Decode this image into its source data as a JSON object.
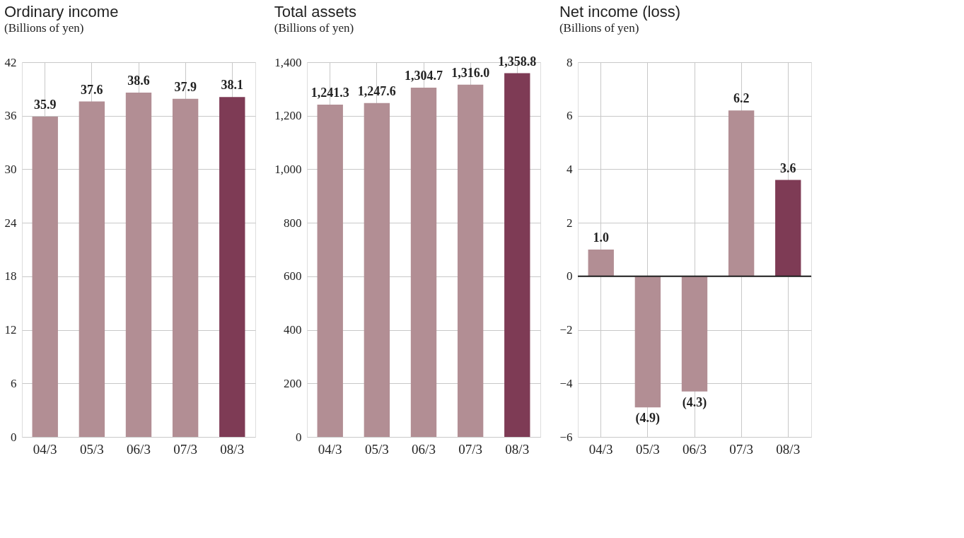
{
  "chart_data": [
    {
      "type": "bar",
      "title": "Ordinary income",
      "subtitle": "(Billions of yen)",
      "categories": [
        "04/3",
        "05/3",
        "06/3",
        "07/3",
        "08/3"
      ],
      "values": [
        35.9,
        37.6,
        38.6,
        37.9,
        38.1
      ],
      "colors": [
        "#b28e94",
        "#b28e94",
        "#b28e94",
        "#b28e94",
        "#7e3b55"
      ],
      "value_labels": [
        "35.9",
        "37.6",
        "38.6",
        "37.9",
        "38.1"
      ],
      "ylim": [
        0,
        42
      ],
      "yticks": [
        0,
        6,
        12,
        18,
        24,
        30,
        36,
        42
      ],
      "grid": true
    },
    {
      "type": "bar",
      "title": "Total assets",
      "subtitle": "(Billions of yen)",
      "categories": [
        "04/3",
        "05/3",
        "06/3",
        "07/3",
        "08/3"
      ],
      "values": [
        1241.3,
        1247.6,
        1304.7,
        1316.0,
        1358.8
      ],
      "colors": [
        "#b28e94",
        "#b28e94",
        "#b28e94",
        "#b28e94",
        "#7e3b55"
      ],
      "value_labels": [
        "1,241.3",
        "1,247.6",
        "1,304.7",
        "1,316.0",
        "1,358.8"
      ],
      "ylim": [
        0,
        1400
      ],
      "yticks": [
        {
          "value": 0,
          "label": "0"
        },
        {
          "value": 200,
          "label": "200"
        },
        {
          "value": 400,
          "label": "400"
        },
        {
          "value": 600,
          "label": "600"
        },
        {
          "value": 800,
          "label": "800"
        },
        {
          "value": 1000,
          "label": "1,000"
        },
        {
          "value": 1200,
          "label": "1,200"
        },
        {
          "value": 1400,
          "label": "1,400"
        }
      ],
      "grid": true
    },
    {
      "type": "bar",
      "title": "Net income (loss)",
      "subtitle": "(Billions of yen)",
      "categories": [
        "04/3",
        "05/3",
        "06/3",
        "07/3",
        "08/3"
      ],
      "values": [
        1.0,
        -4.9,
        -4.3,
        6.2,
        3.6
      ],
      "colors": [
        "#b28e94",
        "#b28e94",
        "#b28e94",
        "#b28e94",
        "#7e3b55"
      ],
      "value_labels": [
        "1.0",
        "(4.9)",
        "(4.3)",
        "6.2",
        "3.6"
      ],
      "ylim": [
        -6,
        8
      ],
      "yticks": [
        -6,
        -4,
        -2,
        0,
        2,
        4,
        6,
        8
      ],
      "grid": true,
      "ref_lines": [
        {
          "axis": "y",
          "value": 0,
          "color": "#222222"
        }
      ]
    }
  ]
}
